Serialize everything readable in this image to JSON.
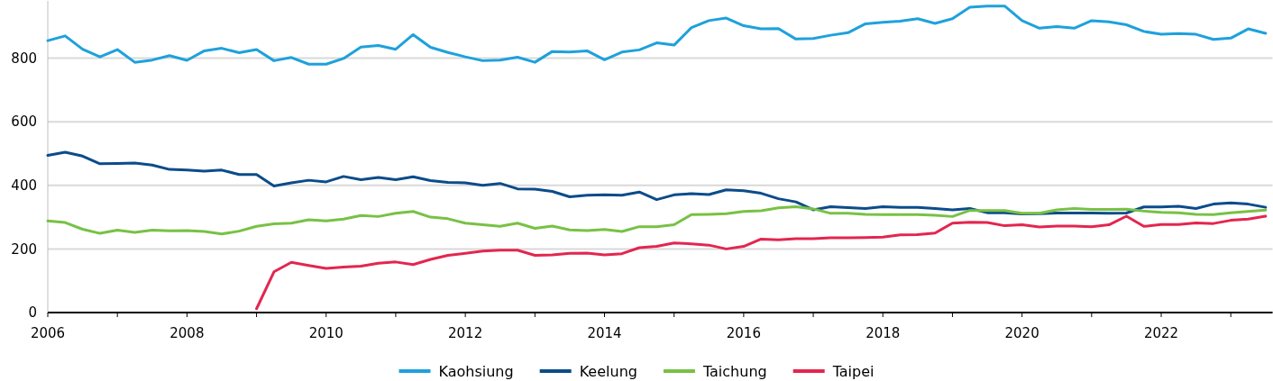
{
  "chart_data": {
    "type": "line",
    "x": [
      2006,
      2006.25,
      2006.5,
      2006.75,
      2007,
      2007.25,
      2007.5,
      2007.75,
      2008,
      2008.25,
      2008.5,
      2008.75,
      2009,
      2009.25,
      2009.5,
      2009.75,
      2010,
      2010.25,
      2010.5,
      2010.75,
      2011,
      2011.25,
      2011.5,
      2011.75,
      2012,
      2012.25,
      2012.5,
      2012.75,
      2013,
      2013.25,
      2013.5,
      2013.75,
      2014,
      2014.25,
      2014.5,
      2014.75,
      2015,
      2015.25,
      2015.5,
      2015.75,
      2016,
      2016.25,
      2016.5,
      2016.75,
      2017,
      2017.25,
      2017.5,
      2017.75,
      2018,
      2018.25,
      2018.5,
      2018.75,
      2019,
      2019.25,
      2019.5,
      2019.75,
      2020,
      2020.25,
      2020.5,
      2020.75,
      2021,
      2021.25,
      2021.5,
      2021.75,
      2022,
      2022.25,
      2022.5,
      2022.75,
      2023,
      2023.25,
      2023.5
    ],
    "series": [
      {
        "name": "Kaohsiung",
        "color": "#1ea1dc",
        "values": [
          855,
          870,
          828,
          804,
          827,
          787,
          794,
          808,
          793,
          823,
          831,
          817,
          827,
          792,
          802,
          781,
          781,
          799,
          835,
          840,
          828,
          874,
          834,
          818,
          804,
          792,
          794,
          803,
          787,
          821,
          819,
          823,
          795,
          819,
          826,
          848,
          841,
          896,
          918,
          926,
          902,
          892,
          893,
          860,
          862,
          872,
          880,
          908,
          913,
          916,
          924,
          909,
          924,
          960,
          964,
          964,
          918,
          894,
          899,
          894,
          918,
          914,
          905,
          884,
          875,
          877,
          875,
          859,
          863,
          892,
          878
        ]
      },
      {
        "name": "Keelung",
        "color": "#0b4c8a",
        "values": [
          494,
          504,
          492,
          468,
          469,
          470,
          464,
          450,
          448,
          445,
          448,
          434,
          434,
          398,
          408,
          416,
          411,
          428,
          418,
          425,
          418,
          427,
          415,
          409,
          408,
          400,
          406,
          389,
          388,
          381,
          364,
          369,
          370,
          369,
          379,
          355,
          370,
          374,
          371,
          386,
          383,
          375,
          358,
          348,
          323,
          333,
          330,
          327,
          333,
          331,
          331,
          327,
          323,
          327,
          314,
          314,
          310,
          311,
          313,
          313,
          313,
          312,
          313,
          332,
          332,
          334,
          327,
          341,
          345,
          341,
          331
        ]
      },
      {
        "name": "Taichung",
        "color": "#78c145",
        "values": [
          288,
          283,
          262,
          249,
          259,
          252,
          259,
          257,
          258,
          255,
          247,
          256,
          271,
          279,
          281,
          292,
          288,
          294,
          305,
          302,
          312,
          318,
          300,
          295,
          281,
          276,
          271,
          281,
          265,
          272,
          260,
          258,
          261,
          255,
          270,
          270,
          276,
          308,
          309,
          311,
          318,
          320,
          329,
          333,
          326,
          312,
          312,
          309,
          308,
          308,
          308,
          306,
          302,
          321,
          321,
          321,
          312,
          312,
          323,
          327,
          324,
          324,
          325,
          319,
          315,
          314,
          309,
          308,
          314,
          318,
          322
        ]
      },
      {
        "name": "Taipei",
        "color": "#e3264f",
        "values": [
          null,
          null,
          null,
          null,
          null,
          null,
          null,
          null,
          null,
          null,
          null,
          null,
          12,
          128,
          158,
          148,
          139,
          143,
          146,
          155,
          159,
          151,
          167,
          180,
          186,
          193,
          196,
          196,
          180,
          181,
          186,
          187,
          181,
          185,
          204,
          208,
          219,
          216,
          212,
          200,
          208,
          231,
          229,
          232,
          232,
          235,
          235,
          236,
          237,
          244,
          245,
          250,
          281,
          284,
          283,
          273,
          276,
          269,
          272,
          272,
          270,
          276,
          303,
          271,
          277,
          277,
          282,
          280,
          290,
          294,
          303
        ]
      }
    ],
    "xlim": [
      2006,
      2023.6
    ],
    "xticks": [
      2006,
      {
        "value": 2007,
        "label": null
      },
      2008,
      {
        "value": 2009,
        "label": null
      },
      2010,
      {
        "value": 2011,
        "label": null
      },
      2012,
      {
        "value": 2013,
        "label": null
      },
      2014,
      {
        "value": 2015,
        "label": null
      },
      2016,
      {
        "value": 2017,
        "label": null
      },
      2018,
      {
        "value": 2019,
        "label": null
      },
      2020,
      {
        "value": 2021,
        "label": null
      },
      2022,
      {
        "value": 2023,
        "label": null
      }
    ],
    "ylim": [
      0,
      980
    ],
    "yticks": [
      0,
      200,
      400,
      600,
      800
    ],
    "grid": "y",
    "legend": "bottom"
  }
}
